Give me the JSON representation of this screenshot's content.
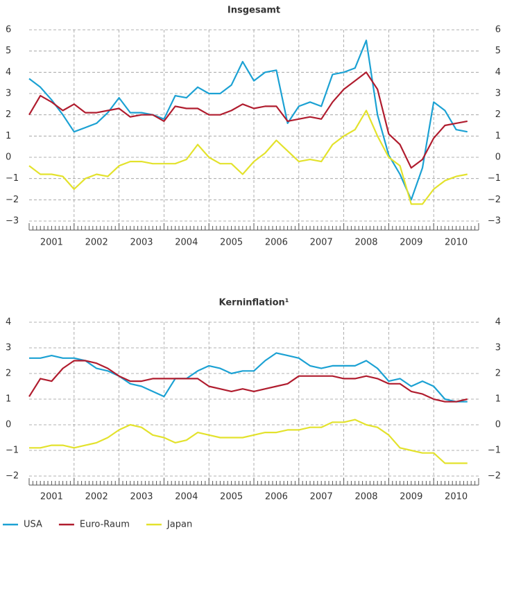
{
  "chart_data": [
    {
      "type": "line",
      "title": "Insgesamt",
      "x": [
        2001,
        2001.25,
        2001.5,
        2001.75,
        2002,
        2002.25,
        2002.5,
        2002.75,
        2003,
        2003.25,
        2003.5,
        2003.75,
        2004,
        2004.25,
        2004.5,
        2004.75,
        2005,
        2005.25,
        2005.5,
        2005.75,
        2006,
        2006.25,
        2006.5,
        2006.75,
        2007,
        2007.25,
        2007.5,
        2007.75,
        2008,
        2008.25,
        2008.5,
        2008.75,
        2009,
        2009.25,
        2009.5,
        2009.75,
        2010,
        2010.25,
        2010.5,
        2010.75
      ],
      "series": [
        {
          "name": "USA",
          "color": "#1ba1d3",
          "values": [
            3.7,
            3.3,
            2.7,
            2.0,
            1.2,
            1.4,
            1.6,
            2.1,
            2.8,
            2.1,
            2.1,
            2.0,
            1.8,
            2.9,
            2.8,
            3.3,
            3.0,
            3.0,
            3.4,
            4.5,
            3.6,
            4.0,
            4.1,
            1.6,
            2.4,
            2.6,
            2.4,
            3.9,
            4.0,
            4.2,
            5.5,
            2.0,
            0.1,
            -0.8,
            -2.0,
            -0.5,
            2.6,
            2.2,
            1.3,
            1.2
          ]
        },
        {
          "name": "Euro-Raum",
          "color": "#b01c2e",
          "values": [
            2.0,
            2.9,
            2.6,
            2.2,
            2.5,
            2.1,
            2.1,
            2.2,
            2.3,
            1.9,
            2.0,
            2.0,
            1.7,
            2.4,
            2.3,
            2.3,
            2.0,
            2.0,
            2.2,
            2.5,
            2.3,
            2.4,
            2.4,
            1.7,
            1.8,
            1.9,
            1.8,
            2.6,
            3.2,
            3.6,
            4.0,
            3.2,
            1.1,
            0.6,
            -0.5,
            -0.1,
            0.9,
            1.5,
            1.6,
            1.7
          ]
        },
        {
          "name": "Japan",
          "color": "#e3e22c",
          "values": [
            -0.4,
            -0.8,
            -0.8,
            -0.9,
            -1.5,
            -1.0,
            -0.8,
            -0.9,
            -0.4,
            -0.2,
            -0.2,
            -0.3,
            -0.3,
            -0.3,
            -0.1,
            0.6,
            0.0,
            -0.3,
            -0.3,
            -0.8,
            -0.2,
            0.2,
            0.8,
            0.3,
            -0.2,
            -0.1,
            -0.2,
            0.6,
            1.0,
            1.3,
            2.2,
            1.0,
            0.0,
            -0.4,
            -2.2,
            -2.2,
            -1.5,
            -1.1,
            -0.9,
            -0.8
          ]
        }
      ],
      "xlim": [
        2001,
        2011
      ],
      "xticks": [
        {
          "value": 2001.5,
          "label": "2001"
        },
        {
          "value": 2002.5,
          "label": "2002"
        },
        {
          "value": 2003.5,
          "label": "2003"
        },
        {
          "value": 2004.5,
          "label": "2004"
        },
        {
          "value": 2005.5,
          "label": "2005"
        },
        {
          "value": 2006.5,
          "label": "2006"
        },
        {
          "value": 2007.5,
          "label": "2007"
        },
        {
          "value": 2008.5,
          "label": "2008"
        },
        {
          "value": 2009.5,
          "label": "2009"
        },
        {
          "value": 2010.5,
          "label": "2010"
        }
      ],
      "ylim": [
        -3,
        6
      ],
      "yticks": [
        {
          "value": -3,
          "label": "−3"
        },
        {
          "value": -2,
          "label": "−2"
        },
        {
          "value": -1,
          "label": "−1"
        },
        0,
        1,
        2,
        3,
        4,
        5,
        6
      ],
      "grid": true
    },
    {
      "type": "line",
      "title": "Kerninflation¹",
      "x": [
        2001,
        2001.25,
        2001.5,
        2001.75,
        2002,
        2002.25,
        2002.5,
        2002.75,
        2003,
        2003.25,
        2003.5,
        2003.75,
        2004,
        2004.25,
        2004.5,
        2004.75,
        2005,
        2005.25,
        2005.5,
        2005.75,
        2006,
        2006.25,
        2006.5,
        2006.75,
        2007,
        2007.25,
        2007.5,
        2007.75,
        2008,
        2008.25,
        2008.5,
        2008.75,
        2009,
        2009.25,
        2009.5,
        2009.75,
        2010,
        2010.25,
        2010.5,
        2010.75
      ],
      "series": [
        {
          "name": "USA",
          "color": "#1ba1d3",
          "values": [
            2.6,
            2.6,
            2.7,
            2.6,
            2.6,
            2.5,
            2.2,
            2.1,
            1.9,
            1.6,
            1.5,
            1.3,
            1.1,
            1.8,
            1.8,
            2.1,
            2.3,
            2.2,
            2.0,
            2.1,
            2.1,
            2.5,
            2.8,
            2.7,
            2.6,
            2.3,
            2.2,
            2.3,
            2.3,
            2.3,
            2.5,
            2.2,
            1.7,
            1.8,
            1.5,
            1.7,
            1.5,
            1.0,
            0.9,
            0.9
          ]
        },
        {
          "name": "Euro-Raum",
          "color": "#b01c2e",
          "values": [
            1.1,
            1.8,
            1.7,
            2.2,
            2.5,
            2.5,
            2.4,
            2.2,
            1.9,
            1.7,
            1.7,
            1.8,
            1.8,
            1.8,
            1.8,
            1.8,
            1.5,
            1.4,
            1.3,
            1.4,
            1.3,
            1.4,
            1.5,
            1.6,
            1.9,
            1.9,
            1.9,
            1.9,
            1.8,
            1.8,
            1.9,
            1.8,
            1.6,
            1.6,
            1.3,
            1.2,
            1.0,
            0.9,
            0.9,
            1.0
          ]
        },
        {
          "name": "Japan",
          "color": "#e3e22c",
          "values": [
            -0.9,
            -0.9,
            -0.8,
            -0.8,
            -0.9,
            -0.8,
            -0.7,
            -0.5,
            -0.2,
            0.0,
            -0.1,
            -0.4,
            -0.5,
            -0.7,
            -0.6,
            -0.3,
            -0.4,
            -0.5,
            -0.5,
            -0.5,
            -0.4,
            -0.3,
            -0.3,
            -0.2,
            -0.2,
            -0.1,
            -0.1,
            0.1,
            0.1,
            0.2,
            0.0,
            -0.1,
            -0.4,
            -0.9,
            -1.0,
            -1.1,
            -1.1,
            -1.5,
            -1.5,
            -1.5
          ]
        }
      ],
      "xlim": [
        2001,
        2011
      ],
      "xticks": [
        {
          "value": 2001.5,
          "label": "2001"
        },
        {
          "value": 2002.5,
          "label": "2002"
        },
        {
          "value": 2003.5,
          "label": "2003"
        },
        {
          "value": 2004.5,
          "label": "2004"
        },
        {
          "value": 2005.5,
          "label": "2005"
        },
        {
          "value": 2006.5,
          "label": "2006"
        },
        {
          "value": 2007.5,
          "label": "2007"
        },
        {
          "value": 2008.5,
          "label": "2008"
        },
        {
          "value": 2009.5,
          "label": "2009"
        },
        {
          "value": 2010.5,
          "label": "2010"
        }
      ],
      "ylim": [
        -2,
        4
      ],
      "yticks": [
        {
          "value": -2,
          "label": "−2"
        },
        {
          "value": -1,
          "label": "−1"
        },
        0,
        1,
        2,
        3,
        4
      ],
      "grid": true
    }
  ]
}
